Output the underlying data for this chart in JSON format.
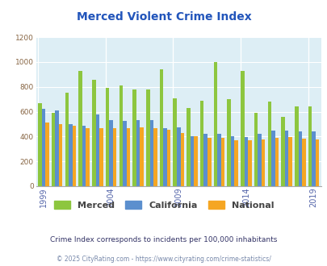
{
  "title": "Merced Violent Crime Index",
  "title_color": "#2255bb",
  "years": [
    1999,
    2000,
    2001,
    2002,
    2003,
    2004,
    2005,
    2006,
    2007,
    2008,
    2009,
    2010,
    2011,
    2012,
    2013,
    2014,
    2015,
    2016,
    2017,
    2018,
    2019
  ],
  "merced": [
    670,
    590,
    750,
    930,
    855,
    795,
    810,
    780,
    780,
    940,
    710,
    630,
    690,
    1000,
    700,
    930,
    590,
    680,
    560,
    640,
    640
  ],
  "california": [
    625,
    610,
    500,
    490,
    580,
    530,
    525,
    535,
    530,
    470,
    475,
    405,
    420,
    420,
    400,
    395,
    425,
    445,
    445,
    440,
    440
  ],
  "national": [
    510,
    500,
    490,
    465,
    465,
    465,
    470,
    475,
    470,
    455,
    430,
    400,
    390,
    390,
    370,
    370,
    375,
    390,
    395,
    380,
    375
  ],
  "merced_color": "#8dc63f",
  "california_color": "#5b8fce",
  "national_color": "#f5a623",
  "plot_bg_color": "#ddeef5",
  "ylim": [
    0,
    1200
  ],
  "yticks": [
    0,
    200,
    400,
    600,
    800,
    1000,
    1200
  ],
  "xtick_years": [
    1999,
    2004,
    2009,
    2014,
    2019
  ],
  "subtitle": "Crime Index corresponds to incidents per 100,000 inhabitants",
  "subtitle_color": "#333366",
  "footer": "© 2025 CityRating.com - https://www.cityrating.com/crime-statistics/",
  "footer_color": "#7788aa",
  "legend_labels": [
    "Merced",
    "California",
    "National"
  ]
}
